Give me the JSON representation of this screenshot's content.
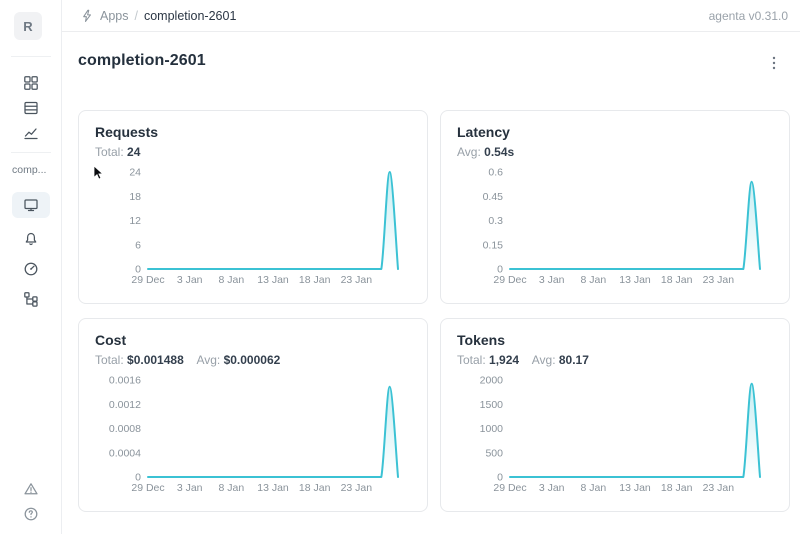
{
  "header": {
    "breadcrumb": {
      "root": "Apps",
      "separator": "/",
      "current": "completion-2601"
    },
    "version": "agenta v0.31.0"
  },
  "sidebar": {
    "logo_letter": "R",
    "app_label": "comp...",
    "icons_top": [
      "grid-icon",
      "table-icon",
      "line-chart-icon"
    ],
    "icons_app": [
      "monitor-icon",
      "bell-icon",
      "gauge-icon",
      "tree-icon"
    ],
    "icons_bottom": [
      "alert-triangle-icon",
      "help-circle-icon"
    ],
    "active_item": "monitor-icon"
  },
  "page": {
    "title": "completion-2601"
  },
  "colors": {
    "line": "#3bc2d4",
    "line_fill": "#3bc2d4"
  },
  "chart_data": {
    "type": "line",
    "x_dates": [
      "29 Dec",
      "30 Dec",
      "31 Dec",
      "1 Jan",
      "2 Jan",
      "3 Jan",
      "4 Jan",
      "5 Jan",
      "6 Jan",
      "7 Jan",
      "8 Jan",
      "9 Jan",
      "10 Jan",
      "11 Jan",
      "12 Jan",
      "13 Jan",
      "14 Jan",
      "15 Jan",
      "16 Jan",
      "17 Jan",
      "18 Jan",
      "19 Jan",
      "20 Jan",
      "21 Jan",
      "22 Jan",
      "23 Jan",
      "24 Jan",
      "25 Jan",
      "26 Jan",
      "27 Jan",
      "28 Jan"
    ],
    "x_ticks": [
      "29 Dec",
      "3 Jan",
      "8 Jan",
      "13 Jan",
      "18 Jan",
      "23 Jan"
    ],
    "x_tick_step": 5,
    "grid": false,
    "legend": false,
    "charts": [
      {
        "title": "Requests",
        "stat1_label": "Total:",
        "stat1_value": "24",
        "stat2_label": "",
        "stat2_value": "",
        "y_ticks": [
          "0",
          "6",
          "12",
          "18",
          "24"
        ],
        "y_max": 24,
        "values": [
          0,
          0,
          0,
          0,
          0,
          0,
          0,
          0,
          0,
          0,
          0,
          0,
          0,
          0,
          0,
          0,
          0,
          0,
          0,
          0,
          0,
          0,
          0,
          0,
          0,
          0,
          0,
          0,
          0,
          24,
          0
        ]
      },
      {
        "title": "Latency",
        "stat1_label": "Avg:",
        "stat1_value": "0.54s",
        "stat2_label": "",
        "stat2_value": "",
        "y_ticks": [
          "0",
          "0.15",
          "0.3",
          "0.45",
          "0.6"
        ],
        "y_max": 0.6,
        "values": [
          0,
          0,
          0,
          0,
          0,
          0,
          0,
          0,
          0,
          0,
          0,
          0,
          0,
          0,
          0,
          0,
          0,
          0,
          0,
          0,
          0,
          0,
          0,
          0,
          0,
          0,
          0,
          0,
          0,
          0.54,
          0
        ]
      },
      {
        "title": "Cost",
        "stat1_label": "Total:",
        "stat1_value": "$0.001488",
        "stat2_label": "Avg:",
        "stat2_value": "$0.000062",
        "y_ticks": [
          "0",
          "0.0004",
          "0.0008",
          "0.0012",
          "0.0016"
        ],
        "y_max": 0.0016,
        "values": [
          0,
          0,
          0,
          0,
          0,
          0,
          0,
          0,
          0,
          0,
          0,
          0,
          0,
          0,
          0,
          0,
          0,
          0,
          0,
          0,
          0,
          0,
          0,
          0,
          0,
          0,
          0,
          0,
          0,
          0.001488,
          0
        ]
      },
      {
        "title": "Tokens",
        "stat1_label": "Total:",
        "stat1_value": "1,924",
        "stat2_label": "Avg:",
        "stat2_value": "80.17",
        "y_ticks": [
          "0",
          "500",
          "1000",
          "1500",
          "2000"
        ],
        "y_max": 2000,
        "values": [
          0,
          0,
          0,
          0,
          0,
          0,
          0,
          0,
          0,
          0,
          0,
          0,
          0,
          0,
          0,
          0,
          0,
          0,
          0,
          0,
          0,
          0,
          0,
          0,
          0,
          0,
          0,
          0,
          0,
          1924,
          0
        ]
      }
    ]
  }
}
